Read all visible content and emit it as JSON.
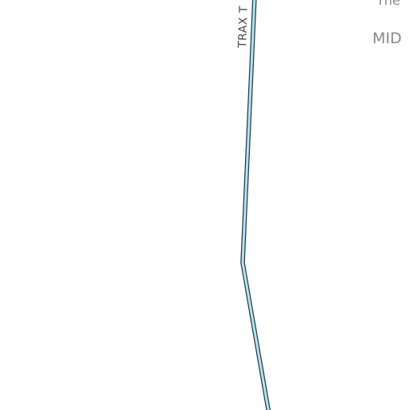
{
  "map": {
    "route": {
      "label": "TRAX T",
      "fill_color": "#a9e8f8",
      "casing_color": "#2b3a40"
    },
    "places": {
      "top_label": "The",
      "mid_label": "MID"
    },
    "background_color": "#ffffff"
  }
}
